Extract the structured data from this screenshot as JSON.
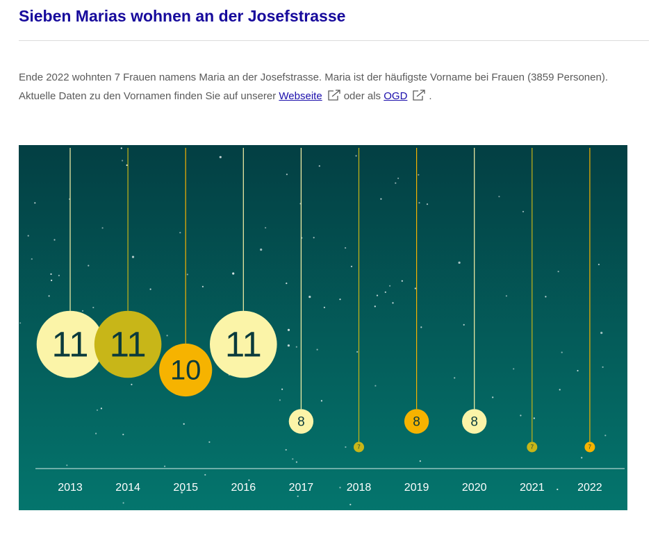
{
  "header": {
    "title": "Sieben Marias wohnen an der Josefstrasse"
  },
  "intro": {
    "line1": "Ende 2022 wohnten 7 Frauen namens Maria an der Josefstrasse. Maria ist der häufigste Vorname bei Frauen (3859 Personen).",
    "line2_prefix": "Aktuelle Daten zu den Vornamen finden Sie auf unserer",
    "link_website": "Webseite",
    "line2_mid": "oder als",
    "link_ogd": "OGD",
    "line2_suffix": "."
  },
  "icons": {
    "external": "external-link-icon"
  },
  "colors": {
    "bg_top": "#033f43",
    "bg_bottom": "#04756d",
    "ornament_light": "#fbf4a8",
    "ornament_olive": "#c8b618",
    "ornament_orange": "#f6b300",
    "title": "#170a9c"
  },
  "chart_data": {
    "type": "ornament-bubble",
    "x": [
      "2013",
      "2014",
      "2015",
      "2016",
      "2017",
      "2018",
      "2019",
      "2020",
      "2021",
      "2022"
    ],
    "values": [
      11,
      11,
      10,
      11,
      8,
      7,
      8,
      8,
      7,
      7
    ],
    "colors": [
      "#fbf4a8",
      "#c8b618",
      "#f6b300",
      "#fbf4a8",
      "#fbf4a8",
      "#c8b618",
      "#f6b300",
      "#fbf4a8",
      "#c8b618",
      "#f6b300"
    ],
    "ylim": [
      6,
      12
    ]
  }
}
